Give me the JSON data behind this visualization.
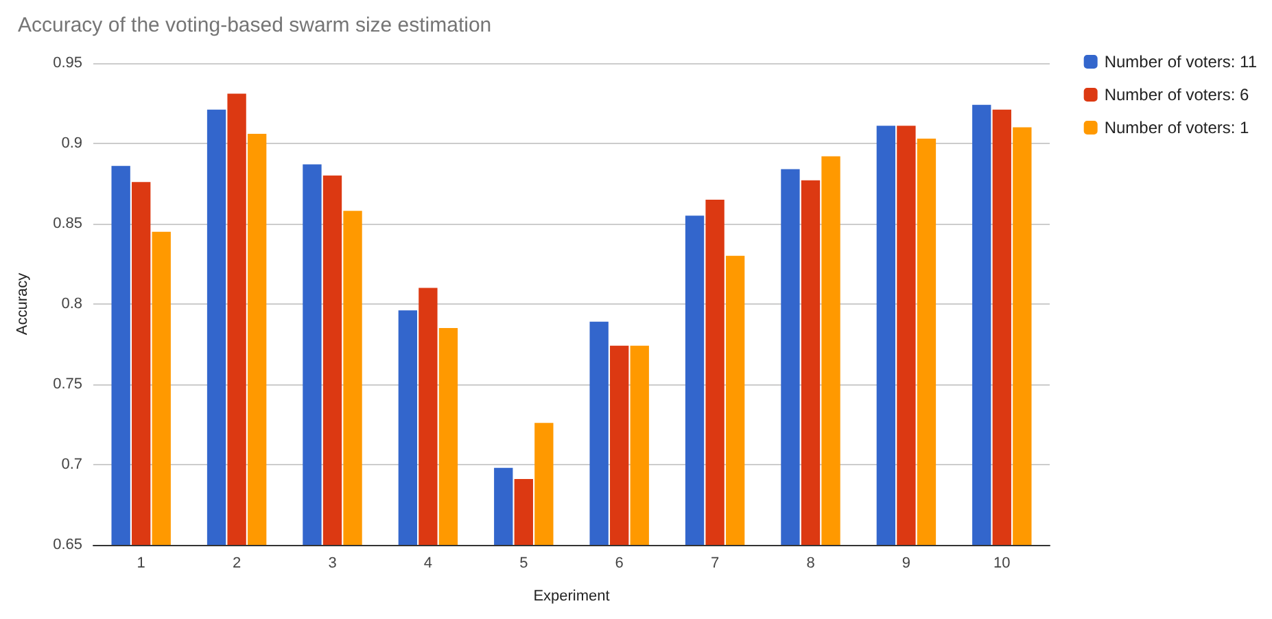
{
  "chart_data": {
    "type": "bar",
    "title": "Accuracy of the voting-based swarm size estimation",
    "xlabel": "Experiment",
    "ylabel": "Accuracy",
    "categories": [
      "1",
      "2",
      "3",
      "4",
      "5",
      "6",
      "7",
      "8",
      "9",
      "10"
    ],
    "series": [
      {
        "name": "Number of voters: 11",
        "color": "#3366cc",
        "values": [
          0.886,
          0.921,
          0.887,
          0.796,
          0.698,
          0.789,
          0.855,
          0.884,
          0.911,
          0.924
        ]
      },
      {
        "name": "Number of voters: 6",
        "color": "#dc3912",
        "values": [
          0.876,
          0.931,
          0.88,
          0.81,
          0.691,
          0.774,
          0.865,
          0.877,
          0.911,
          0.921
        ]
      },
      {
        "name": "Number of voters: 1",
        "color": "#ff9900",
        "values": [
          0.845,
          0.906,
          0.858,
          0.785,
          0.726,
          0.774,
          0.83,
          0.892,
          0.903,
          0.91
        ]
      }
    ],
    "ylim": [
      0.65,
      0.95
    ],
    "yticks": [
      0.65,
      0.7,
      0.75,
      0.8,
      0.85,
      0.9,
      0.95
    ],
    "grid": "y",
    "legend": "top right"
  }
}
